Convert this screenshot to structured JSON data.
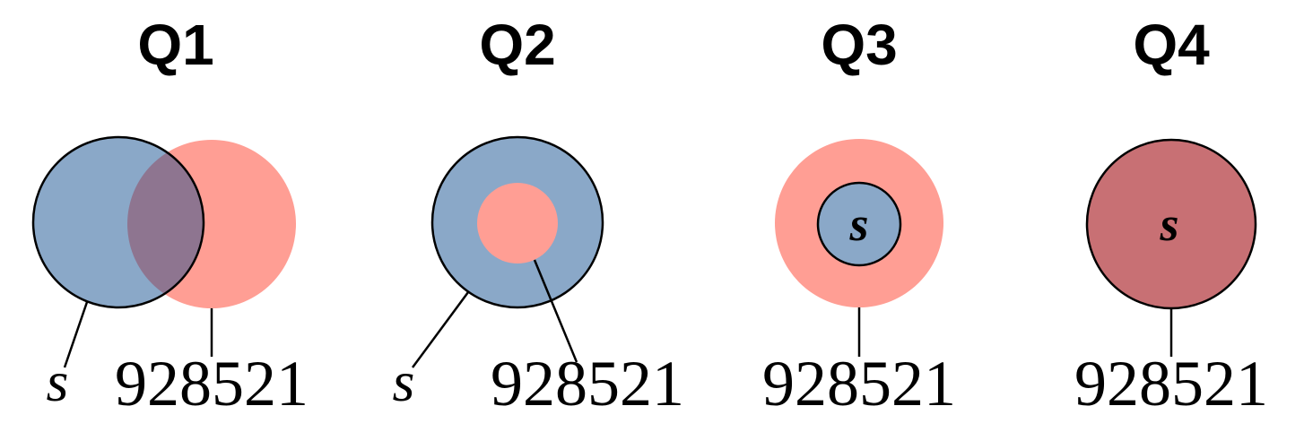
{
  "colors": {
    "set_s": "#8aa8c8",
    "set_n": "#ff9e94",
    "overlap": "#8e7590",
    "combined": "#c87074",
    "stroke": "#000000"
  },
  "panels": [
    {
      "title": "Q1",
      "set_label": "s",
      "number_label": "928521"
    },
    {
      "title": "Q2",
      "set_label": "s",
      "number_label": "928521"
    },
    {
      "title": "Q3",
      "set_label": "s",
      "number_label": "928521"
    },
    {
      "title": "Q4",
      "set_label": "s",
      "number_label": "928521"
    }
  ]
}
